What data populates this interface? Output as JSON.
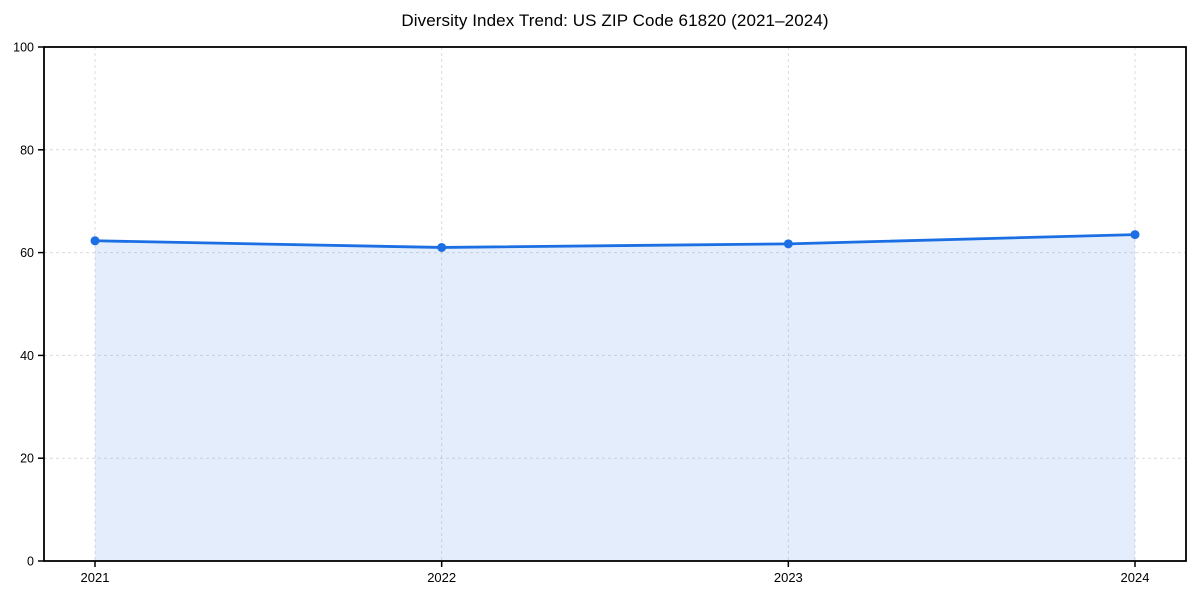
{
  "page": {
    "background": "#ffffff"
  },
  "colors": {
    "line": "#1b6fe3",
    "marker": "#1b6fe3",
    "fill": "#1b6fe3",
    "fill_opacity": 0.12,
    "grid": "#dcdcdc",
    "axis": "#000000",
    "text": "#000000"
  },
  "chart_data": {
    "type": "area",
    "title": "Diversity Index Trend: US ZIP Code 61820 (2021–2024)",
    "categories": [
      "2021",
      "2022",
      "2023",
      "2024"
    ],
    "values": [
      62.3,
      61.0,
      61.7,
      63.5
    ],
    "xlabel": "",
    "ylabel": "",
    "ylim": [
      0,
      100
    ],
    "yticks": [
      0,
      20,
      40,
      60,
      80,
      100
    ],
    "grid": true,
    "grid_style": "dashed",
    "legend": "none",
    "marker": "circle"
  }
}
